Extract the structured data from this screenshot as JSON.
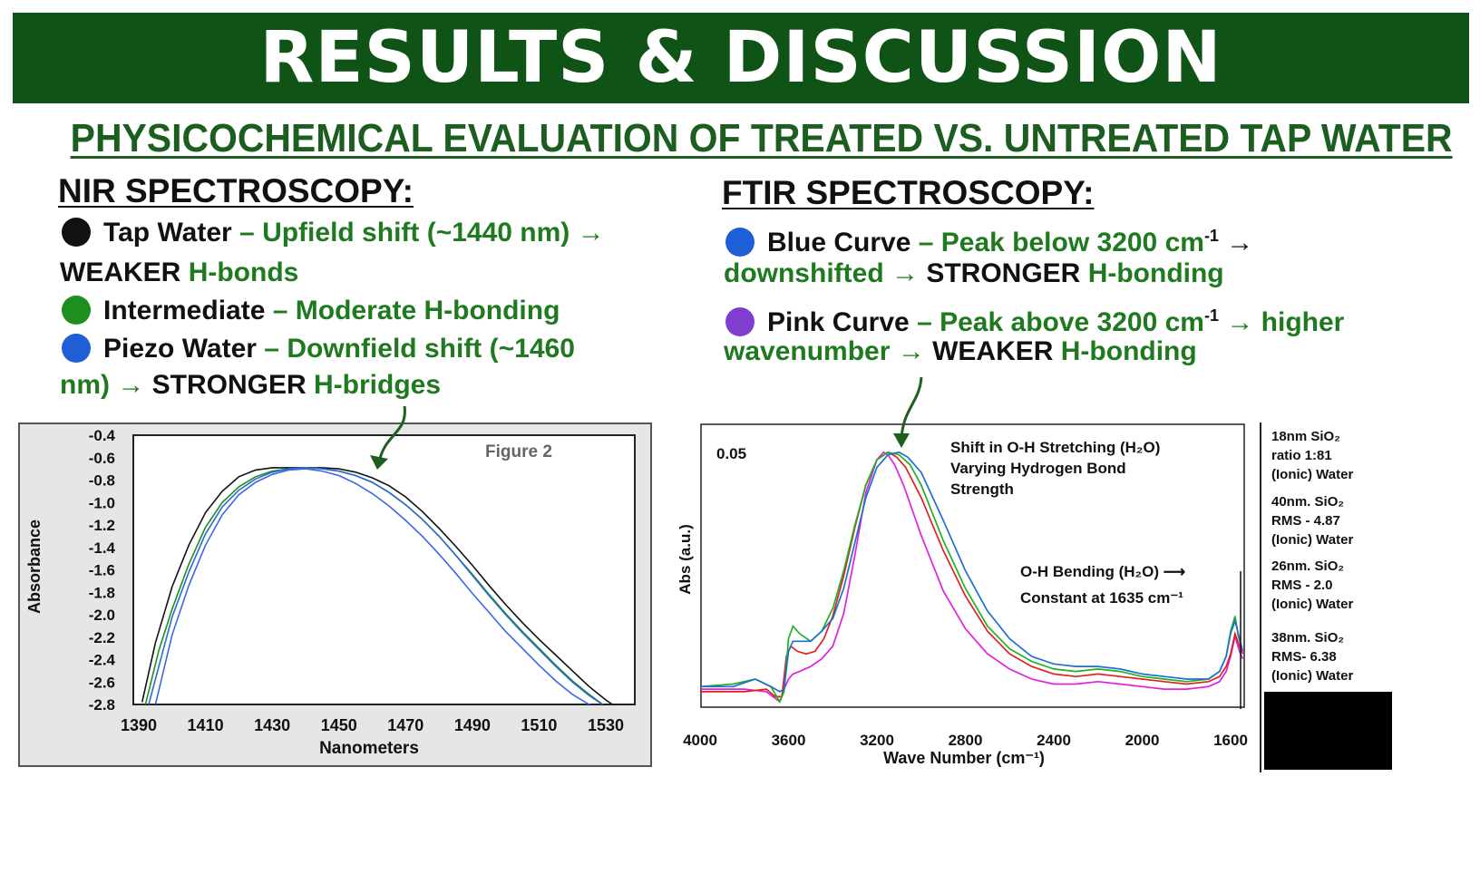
{
  "header": {
    "title": "RESULTS & DISCUSSION"
  },
  "subtitle": "PHYSICOCHEMICAL EVALUATION OF TREATED VS. UNTREATED TAP WATER",
  "nir": {
    "heading": "NIR SPECTROSCOPY:",
    "items": [
      {
        "dot_color": "#111111",
        "name": "Tap Water",
        "dash": "–",
        "desc": "Upfield shift (~1440 nm) →",
        "cont_strong": "WEAKER",
        "cont_rest": "H-bonds"
      },
      {
        "dot_color": "#1e8f1e",
        "name": "Intermediate",
        "dash": "–",
        "desc": "Moderate H-bonding"
      },
      {
        "dot_color": "#1f5fd6",
        "name": "Piezo Water",
        "dash": "–",
        "desc": "Downfield shift (~1460",
        "cont_pre": "nm) →",
        "cont_strong": "STRONGER",
        "cont_rest": "H-bridges"
      }
    ]
  },
  "ftir": {
    "heading": "FTIR SPECTROSCOPY:",
    "items": [
      {
        "dot_color": "#1f5fd6",
        "name": "Blue Curve",
        "dash": "–",
        "desc": "Peak below 3200 cm",
        "sup": "-1",
        "arrow": "→",
        "cont_pre": "downshifted →",
        "cont_strong": "STRONGER",
        "cont_rest": "H-bonding"
      },
      {
        "dot_color": "#7e3fd0",
        "name": "Pink Curve",
        "dash": "–",
        "desc": "Peak above 3200 cm",
        "sup": "-1",
        "arrow": "→ higher",
        "cont_pre": "wavenumber →",
        "cont_strong": "WEAKER",
        "cont_rest": "H-bonding"
      }
    ]
  },
  "chart_data": [
    {
      "type": "line",
      "title": "Figure 2",
      "xlabel": "Nanometers",
      "ylabel": "Absorbance",
      "xlim": [
        1390,
        1535
      ],
      "ylim": [
        -2.8,
        -0.4
      ],
      "x_ticks": [
        "1390",
        "1410",
        "1430",
        "1450",
        "1470",
        "1490",
        "1510",
        "1530"
      ],
      "y_ticks": [
        "-0.4",
        "-0.6",
        "-0.8",
        "-1.0",
        "-1.2",
        "-1.4",
        "-1.6",
        "-1.8",
        "-2.0",
        "-2.2",
        "-2.4",
        "-2.6",
        "-2.8"
      ],
      "series": [
        {
          "color": "#111111",
          "x": [
            1391,
            1395,
            1400,
            1405,
            1410,
            1415,
            1420,
            1425,
            1430,
            1435,
            1440,
            1445,
            1450,
            1455,
            1460,
            1465,
            1470,
            1475,
            1480,
            1485,
            1490,
            1495,
            1500,
            1505,
            1510,
            1515,
            1520,
            1525,
            1530,
            1533
          ],
          "y": [
            -2.78,
            -2.25,
            -1.75,
            -1.38,
            -1.09,
            -0.9,
            -0.77,
            -0.71,
            -0.69,
            -0.69,
            -0.69,
            -0.69,
            -0.7,
            -0.73,
            -0.78,
            -0.85,
            -0.95,
            -1.08,
            -1.23,
            -1.39,
            -1.56,
            -1.74,
            -1.91,
            -2.07,
            -2.22,
            -2.36,
            -2.5,
            -2.64,
            -2.76,
            -2.82
          ]
        },
        {
          "color": "#1e8f1e",
          "x": [
            1392,
            1396,
            1400,
            1405,
            1410,
            1415,
            1420,
            1425,
            1430,
            1435,
            1440,
            1445,
            1450,
            1455,
            1460,
            1465,
            1470,
            1475,
            1480,
            1485,
            1490,
            1495,
            1500,
            1505,
            1510,
            1515,
            1520,
            1525,
            1530
          ],
          "y": [
            -2.8,
            -2.32,
            -1.95,
            -1.55,
            -1.22,
            -1.0,
            -0.86,
            -0.77,
            -0.72,
            -0.7,
            -0.69,
            -0.7,
            -0.72,
            -0.76,
            -0.82,
            -0.91,
            -1.02,
            -1.15,
            -1.3,
            -1.47,
            -1.64,
            -1.82,
            -1.99,
            -2.15,
            -2.3,
            -2.45,
            -2.59,
            -2.71,
            -2.82
          ]
        },
        {
          "color": "#2a6ad1",
          "x": [
            1393,
            1397,
            1400,
            1405,
            1410,
            1415,
            1420,
            1425,
            1430,
            1435,
            1440,
            1445,
            1450,
            1455,
            1460,
            1465,
            1470,
            1475,
            1480,
            1485,
            1490,
            1495,
            1500,
            1505,
            1510,
            1515,
            1520,
            1525,
            1530
          ],
          "y": [
            -2.8,
            -2.35,
            -2.02,
            -1.62,
            -1.28,
            -1.04,
            -0.89,
            -0.79,
            -0.73,
            -0.7,
            -0.69,
            -0.7,
            -0.72,
            -0.76,
            -0.82,
            -0.91,
            -1.02,
            -1.15,
            -1.3,
            -1.47,
            -1.65,
            -1.83,
            -2.0,
            -2.16,
            -2.31,
            -2.46,
            -2.6,
            -2.72,
            -2.82
          ]
        },
        {
          "color": "#3a66e8",
          "x": [
            1395,
            1400,
            1405,
            1410,
            1415,
            1420,
            1425,
            1430,
            1435,
            1440,
            1445,
            1450,
            1455,
            1460,
            1465,
            1470,
            1475,
            1480,
            1485,
            1490,
            1495,
            1500,
            1505,
            1510,
            1515,
            1520,
            1525,
            1528
          ],
          "y": [
            -2.8,
            -2.18,
            -1.74,
            -1.38,
            -1.11,
            -0.93,
            -0.82,
            -0.75,
            -0.71,
            -0.7,
            -0.72,
            -0.76,
            -0.83,
            -0.92,
            -1.03,
            -1.16,
            -1.3,
            -1.46,
            -1.63,
            -1.81,
            -1.98,
            -2.15,
            -2.3,
            -2.45,
            -2.59,
            -2.71,
            -2.8,
            -2.84
          ]
        }
      ],
      "annotation_arrow": {
        "from_x": 1465,
        "from_y": -0.2,
        "to_x": 1455,
        "to_y": -0.78
      }
    },
    {
      "type": "line",
      "xlabel": "Wave Number (cm⁻¹)",
      "ylabel": "Abs (a.u.)",
      "xlim": [
        4000,
        1540
      ],
      "ylim": [
        0,
        1
      ],
      "x_ticks": [
        "4000",
        "3600",
        "3200",
        "2800",
        "2400",
        "2000",
        "1600"
      ],
      "scale_label": "0.05",
      "annotations": {
        "shift": [
          "Shift in O-H Stretching (H₂O)",
          "Varying Hydrogen Bond",
          "Strength"
        ],
        "bending": [
          "O-H Bending (H₂O) ⟶",
          "Constant at 1635 cm⁻¹"
        ]
      },
      "legend": [
        [
          "18nm SiO₂",
          "ratio 1:81",
          "(Ionic) Water"
        ],
        [
          "40nm. SiO₂",
          "RMS - 4.87",
          "(Ionic) Water"
        ],
        [
          "26nm. SiO₂",
          "RMS - 2.0",
          "(Ionic) Water"
        ],
        [
          "38nm. SiO₂",
          "RMS- 6.38",
          "(Ionic) Water"
        ]
      ],
      "series": [
        {
          "color": "#e020e0",
          "x": [
            4000,
            3800,
            3700,
            3640,
            3620,
            3600,
            3580,
            3550,
            3500,
            3450,
            3400,
            3350,
            3300,
            3250,
            3200,
            3170,
            3150,
            3120,
            3080,
            3000,
            2900,
            2800,
            2700,
            2600,
            2500,
            2400,
            2300,
            2200,
            2100,
            2000,
            1900,
            1800,
            1700,
            1650,
            1620,
            1600,
            1580,
            1560,
            1545
          ],
          "y": [
            0.05,
            0.05,
            0.04,
            0.0,
            0.05,
            0.09,
            0.11,
            0.12,
            0.14,
            0.17,
            0.22,
            0.35,
            0.58,
            0.83,
            0.96,
            0.99,
            0.98,
            0.94,
            0.86,
            0.66,
            0.44,
            0.29,
            0.19,
            0.13,
            0.09,
            0.07,
            0.07,
            0.08,
            0.07,
            0.06,
            0.05,
            0.05,
            0.06,
            0.08,
            0.12,
            0.18,
            0.26,
            0.2,
            0.17
          ]
        },
        {
          "color": "#e02020",
          "x": [
            4000,
            3800,
            3700,
            3660,
            3630,
            3610,
            3590,
            3560,
            3520,
            3480,
            3440,
            3400,
            3350,
            3300,
            3250,
            3200,
            3150,
            3110,
            3070,
            3000,
            2900,
            2800,
            2700,
            2600,
            2500,
            2400,
            2300,
            2200,
            2100,
            2000,
            1900,
            1800,
            1700,
            1650,
            1620,
            1600,
            1580,
            1560,
            1545
          ],
          "y": [
            0.04,
            0.04,
            0.05,
            0.02,
            0.02,
            0.18,
            0.22,
            0.2,
            0.19,
            0.2,
            0.25,
            0.34,
            0.5,
            0.69,
            0.86,
            0.96,
            0.99,
            0.97,
            0.93,
            0.81,
            0.6,
            0.42,
            0.28,
            0.19,
            0.14,
            0.11,
            0.1,
            0.11,
            0.1,
            0.09,
            0.08,
            0.07,
            0.08,
            0.1,
            0.14,
            0.19,
            0.27,
            0.22,
            0.19
          ]
        },
        {
          "color": "#22b022",
          "x": [
            4000,
            3850,
            3750,
            3680,
            3640,
            3620,
            3600,
            3580,
            3550,
            3500,
            3450,
            3400,
            3350,
            3300,
            3250,
            3200,
            3150,
            3100,
            3050,
            3000,
            2900,
            2800,
            2700,
            2600,
            2500,
            2400,
            2300,
            2200,
            2100,
            2000,
            1900,
            1800,
            1700,
            1650,
            1620,
            1600,
            1580,
            1565,
            1545
          ],
          "y": [
            0.06,
            0.07,
            0.09,
            0.06,
            0.0,
            0.04,
            0.25,
            0.3,
            0.27,
            0.24,
            0.28,
            0.37,
            0.52,
            0.7,
            0.86,
            0.96,
            0.99,
            0.98,
            0.94,
            0.86,
            0.64,
            0.45,
            0.3,
            0.21,
            0.16,
            0.13,
            0.12,
            0.13,
            0.12,
            0.1,
            0.09,
            0.08,
            0.09,
            0.12,
            0.18,
            0.28,
            0.34,
            0.26,
            0.2
          ]
        },
        {
          "color": "#1f6fd0",
          "x": [
            4000,
            3850,
            3750,
            3680,
            3640,
            3620,
            3600,
            3580,
            3550,
            3500,
            3450,
            3400,
            3350,
            3300,
            3250,
            3200,
            3150,
            3100,
            3060,
            3000,
            2900,
            2800,
            2700,
            2600,
            2500,
            2400,
            2300,
            2200,
            2100,
            2000,
            1900,
            1800,
            1700,
            1650,
            1620,
            1600,
            1580,
            1565,
            1545
          ],
          "y": [
            0.06,
            0.06,
            0.09,
            0.06,
            0.04,
            0.05,
            0.2,
            0.24,
            0.24,
            0.24,
            0.28,
            0.33,
            0.45,
            0.63,
            0.81,
            0.93,
            0.98,
            0.99,
            0.97,
            0.91,
            0.72,
            0.52,
            0.36,
            0.25,
            0.18,
            0.15,
            0.14,
            0.14,
            0.13,
            0.11,
            0.1,
            0.09,
            0.09,
            0.12,
            0.18,
            0.27,
            0.32,
            0.27,
            0.2
          ]
        }
      ],
      "annotation_arrow": {
        "from_x": 3050,
        "from_y": 1.18,
        "to_x": 3080,
        "to_y": 0.99
      }
    }
  ]
}
